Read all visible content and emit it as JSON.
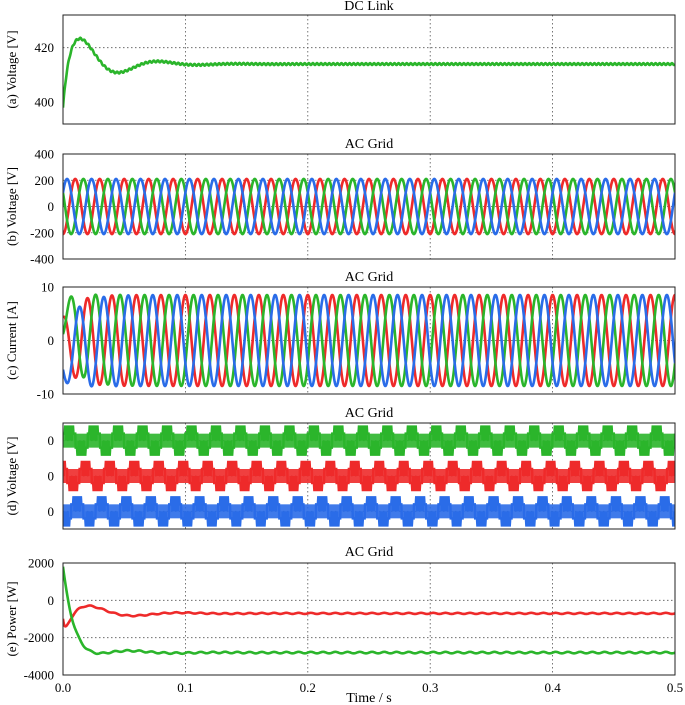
{
  "chart_data": [
    {
      "type": "line",
      "title": "DC Link",
      "ylabel": "(a) Voltage [V]",
      "xlim": [
        0,
        0.5
      ],
      "ylim": [
        392,
        432
      ],
      "yticks": [
        400,
        420
      ],
      "gridY": [
        420
      ],
      "xticks": [
        0.1,
        0.2,
        0.3,
        0.4,
        0.5
      ],
      "grid": true,
      "series": [
        {
          "color": "#2bb52b",
          "kind": "dclink",
          "start": 398,
          "final": 414,
          "peak": 426,
          "peak_time": 0.02
        }
      ]
    },
    {
      "type": "line",
      "title": "AC Grid",
      "ylabel": "(b) Voltage [V]",
      "xlim": [
        0,
        0.5
      ],
      "ylim": [
        -400,
        400
      ],
      "yticks": [
        -400,
        -200,
        0,
        200,
        400
      ],
      "xticks": [
        0.1,
        0.2,
        0.3,
        0.4,
        0.5
      ],
      "grid": true,
      "series": [
        {
          "color": "#ee2a2a",
          "kind": "sine",
          "amplitude": 210,
          "frequency_hz": 50,
          "phase_deg": -90
        },
        {
          "color": "#2bb52b",
          "kind": "sine",
          "amplitude": 210,
          "frequency_hz": 50,
          "phase_deg": 150
        },
        {
          "color": "#2a6ce8",
          "kind": "sine",
          "amplitude": 210,
          "frequency_hz": 50,
          "phase_deg": 30
        }
      ]
    },
    {
      "type": "line",
      "title": "AC Grid",
      "ylabel": "(c) Current [A]",
      "xlim": [
        0,
        0.5
      ],
      "ylim": [
        -10,
        10
      ],
      "yticks": [
        -10,
        0,
        10
      ],
      "xticks": [
        0.1,
        0.2,
        0.3,
        0.4,
        0.5
      ],
      "grid": true,
      "series": [
        {
          "color": "#ee2a2a",
          "kind": "sine",
          "amplitude": 8.5,
          "frequency_hz": 50,
          "phase_deg": 90,
          "transient_s": 0.03
        },
        {
          "color": "#2bb52b",
          "kind": "sine",
          "amplitude": 8.5,
          "frequency_hz": 50,
          "phase_deg": -30,
          "transient_s": 0.03
        },
        {
          "color": "#2a6ce8",
          "kind": "sine",
          "amplitude": 8.5,
          "frequency_hz": 50,
          "phase_deg": 210,
          "transient_s": 0.03
        }
      ]
    },
    {
      "type": "line",
      "title": "AC Grid",
      "ylabel": "(d) Voltage [V]",
      "xlim": [
        0,
        0.5
      ],
      "xticks": [
        0.1,
        0.2,
        0.3,
        0.4,
        0.5
      ],
      "grid": true,
      "stacked_tick_label": "0",
      "series": [
        {
          "color": "#2bb52b",
          "kind": "pwm",
          "frequency_hz": 50,
          "phase_deg": 0
        },
        {
          "color": "#ee2a2a",
          "kind": "pwm",
          "frequency_hz": 50,
          "phase_deg": 120
        },
        {
          "color": "#2a6ce8",
          "kind": "pwm",
          "frequency_hz": 50,
          "phase_deg": 240
        }
      ]
    },
    {
      "type": "line",
      "title": "AC Grid",
      "ylabel": "(e) Power [W]",
      "xlabel": "Time / s",
      "xlim": [
        0,
        0.5
      ],
      "ylim": [
        -4000,
        2000
      ],
      "yticks": [
        -4000,
        -2000,
        0,
        2000
      ],
      "gridY": [
        -2000,
        0
      ],
      "xticks": [
        0.0,
        0.1,
        0.2,
        0.3,
        0.4,
        0.5
      ],
      "grid": true,
      "series": [
        {
          "color": "#ee2a2a",
          "kind": "power",
          "start": -600,
          "final": -700,
          "overshoot": -1800,
          "peak": 50
        },
        {
          "color": "#2bb52b",
          "kind": "power",
          "start": 1500,
          "final": -2800,
          "overshoot": -3100,
          "peak": -2450
        }
      ]
    }
  ]
}
